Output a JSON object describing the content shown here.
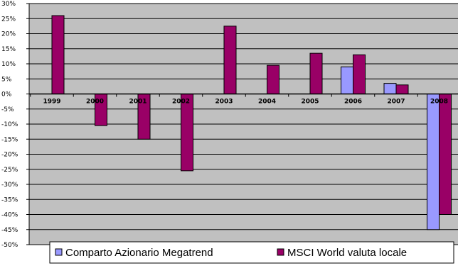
{
  "chart_data": {
    "type": "bar",
    "title": "",
    "xlabel": "",
    "ylabel": "",
    "categories": [
      "1999",
      "2000",
      "2001",
      "2002",
      "2003",
      "2004",
      "2005",
      "2006",
      "2007",
      "2008"
    ],
    "series": [
      {
        "name": "Comparto Azionario Megatrend",
        "color": "#9999ff",
        "values": [
          null,
          null,
          null,
          null,
          null,
          null,
          null,
          9,
          3.5,
          -45
        ]
      },
      {
        "name": "MSCI World valuta locale",
        "color": "#990066",
        "values": [
          26,
          -10.5,
          -15,
          -25.5,
          22.5,
          9.5,
          13.5,
          13,
          3,
          -40
        ]
      }
    ],
    "ylim": [
      -50,
      30
    ],
    "yticks": [
      30,
      25,
      20,
      15,
      10,
      5,
      0,
      -5,
      -10,
      -15,
      -20,
      -25,
      -30,
      -35,
      -40,
      -45,
      -50
    ],
    "ytick_labels": [
      "30%",
      "25%",
      "20%",
      "15%",
      "10%",
      "5%",
      "0%",
      "-5%",
      "-10%",
      "-15%",
      "-20%",
      "-25%",
      "-30%",
      "-35%",
      "-40%",
      "-45%",
      "-50%"
    ],
    "grid": true,
    "legend": "bottom",
    "plot_background": "#c0c0c0"
  }
}
